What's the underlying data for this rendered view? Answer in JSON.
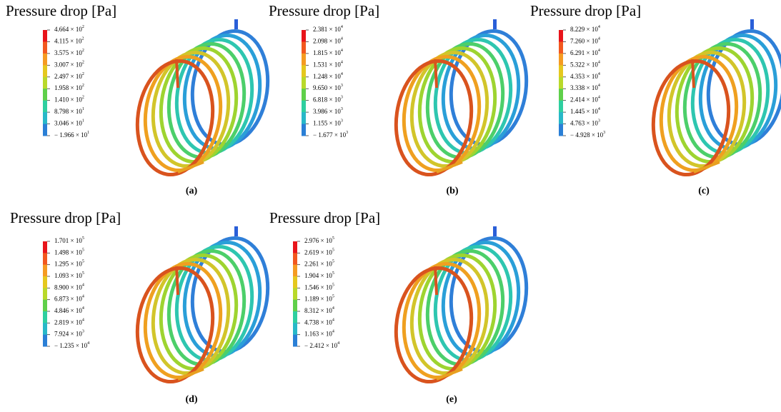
{
  "panels": [
    {
      "title": "Pressure drop [Pa]",
      "caption": "(a)",
      "labels": [
        {
          "base": "4.664 × 10",
          "exp": "2"
        },
        {
          "base": "4.115 × 10",
          "exp": "2"
        },
        {
          "base": "3.575 × 10",
          "exp": "2"
        },
        {
          "base": "3.007 × 10",
          "exp": "2"
        },
        {
          "base": "2.497 × 10",
          "exp": "2"
        },
        {
          "base": "1.958 × 10",
          "exp": "2"
        },
        {
          "base": "1.410 × 10",
          "exp": "2"
        },
        {
          "base": "8.798 × 10",
          "exp": "1"
        },
        {
          "base": "3.046 × 10",
          "exp": "1"
        },
        {
          "base": "− 1.966 × 10",
          "exp": "1"
        }
      ]
    },
    {
      "title": "Pressure drop [Pa]",
      "caption": "(b)",
      "labels": [
        {
          "base": "2.381 × 10",
          "exp": "4"
        },
        {
          "base": "2.098 × 10",
          "exp": "4"
        },
        {
          "base": "1.815 × 10",
          "exp": "4"
        },
        {
          "base": "1.531 × 10",
          "exp": "4"
        },
        {
          "base": "1.248 × 10",
          "exp": "4"
        },
        {
          "base": "9.650 × 10",
          "exp": "3"
        },
        {
          "base": "6.818 × 10",
          "exp": "3"
        },
        {
          "base": "3.986 × 10",
          "exp": "3"
        },
        {
          "base": "1.155 × 10",
          "exp": "3"
        },
        {
          "base": "− 1.677 × 10",
          "exp": "3"
        }
      ]
    },
    {
      "title": "Pressure drop [Pa]",
      "caption": "(c)",
      "labels": [
        {
          "base": "8.229 × 10",
          "exp": "4"
        },
        {
          "base": "7.260 × 10",
          "exp": "4"
        },
        {
          "base": "6.291 × 10",
          "exp": "4"
        },
        {
          "base": "5.322 × 10",
          "exp": "4"
        },
        {
          "base": "4.353 × 10",
          "exp": "4"
        },
        {
          "base": "3.338 × 10",
          "exp": "4"
        },
        {
          "base": "2.414 × 10",
          "exp": "4"
        },
        {
          "base": "1.445 × 10",
          "exp": "4"
        },
        {
          "base": "4.763 × 10",
          "exp": "3"
        },
        {
          "base": "− 4.928 × 10",
          "exp": "3"
        }
      ]
    },
    {
      "title": "Pressure drop [Pa]",
      "caption": "(d)",
      "labels": [
        {
          "base": "1.701 × 10",
          "exp": "5"
        },
        {
          "base": "1.498 × 10",
          "exp": "5"
        },
        {
          "base": "1.295 × 10",
          "exp": "5"
        },
        {
          "base": "1.093 × 10",
          "exp": "5"
        },
        {
          "base": "8.900 × 10",
          "exp": "4"
        },
        {
          "base": "6.873 × 10",
          "exp": "4"
        },
        {
          "base": "4.846 × 10",
          "exp": "4"
        },
        {
          "base": "2.819 × 10",
          "exp": "4"
        },
        {
          "base": "7.924 × 10",
          "exp": "3"
        },
        {
          "base": "− 1.235 × 10",
          "exp": "4"
        }
      ]
    },
    {
      "title": "Pressure drop [Pa]",
      "caption": "(e)",
      "labels": [
        {
          "base": "2.976 × 10",
          "exp": "5"
        },
        {
          "base": "2.619 × 10",
          "exp": "5"
        },
        {
          "base": "2.261 × 10",
          "exp": "5"
        },
        {
          "base": "1.904 × 10",
          "exp": "5"
        },
        {
          "base": "1.546 × 10",
          "exp": "5"
        },
        {
          "base": "1.189 × 10",
          "exp": "5"
        },
        {
          "base": "8.312 × 10",
          "exp": "4"
        },
        {
          "base": "4.738 × 10",
          "exp": "4"
        },
        {
          "base": "1.163 × 10",
          "exp": "4"
        },
        {
          "base": "− 2.412 × 10",
          "exp": "4"
        }
      ]
    }
  ]
}
